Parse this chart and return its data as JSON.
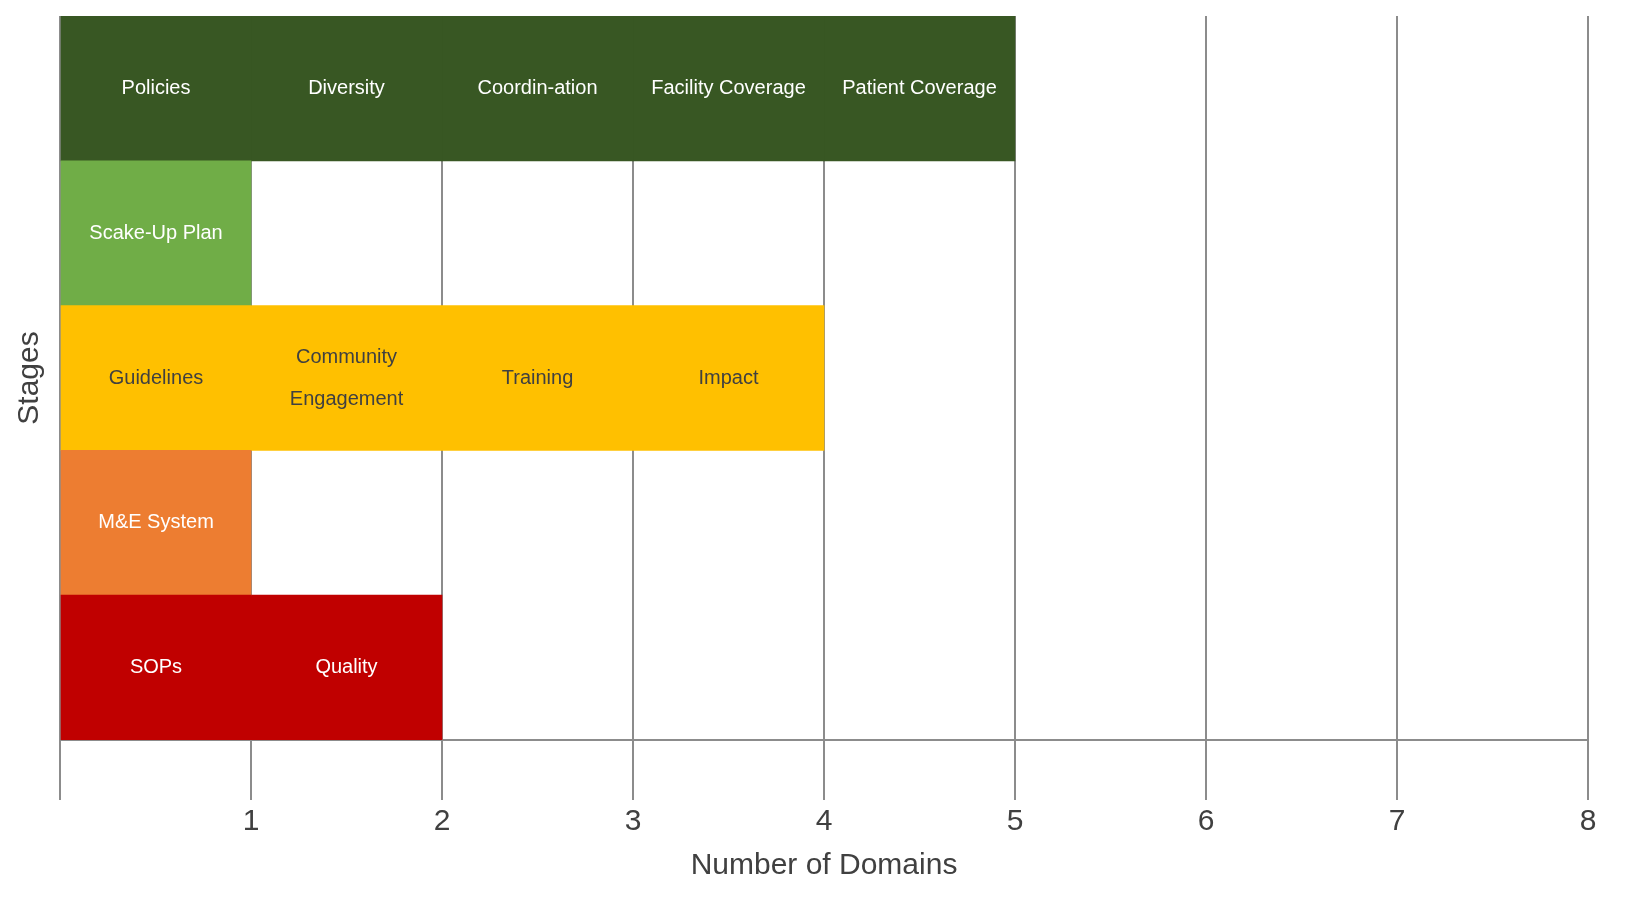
{
  "chart_data": {
    "type": "bar",
    "orientation": "horizontal",
    "stacked": true,
    "xlabel": "Number of Domains",
    "ylabel": "Stages",
    "categories": [
      null,
      null,
      null,
      null,
      null
    ],
    "series": [
      {
        "colors": [
          "#385723",
          "#70ad47",
          "#ffc000",
          "#ed7d31",
          "#c00000"
        ],
        "values": [
          1,
          1,
          1,
          1,
          1
        ],
        "value_labels": [
          "Policies",
          "Scake-Up Plan",
          "Guidelines",
          "M&E System",
          "SOPs"
        ]
      },
      {
        "colors": [
          "#385723",
          "#70ad47",
          "#ffc000",
          "#ed7d31",
          "#c00000"
        ],
        "values": [
          1,
          null,
          1,
          null,
          1
        ],
        "value_labels": [
          "Diversity",
          null,
          "Community Engagement",
          null,
          "Quality"
        ]
      },
      {
        "colors": [
          "#385723",
          "#70ad47",
          "#ffc000",
          "#ed7d31",
          "#c00000"
        ],
        "values": [
          1,
          null,
          1,
          null,
          null
        ],
        "value_labels": [
          "Coordin-ation",
          null,
          "Training",
          null,
          null
        ]
      },
      {
        "colors": [
          "#385723",
          "#70ad47",
          "#ffc000",
          "#ed7d31",
          "#c00000"
        ],
        "values": [
          1,
          null,
          1,
          null,
          null
        ],
        "value_labels": [
          "Facility Coverage",
          null,
          "Impact",
          null,
          null
        ]
      },
      {
        "colors": [
          "#385723",
          "#70ad47",
          "#ffc000",
          "#ed7d31",
          "#c00000"
        ],
        "values": [
          1,
          null,
          null,
          null,
          null
        ],
        "value_labels": [
          "Patient Coverage",
          null,
          null,
          null,
          null
        ]
      }
    ],
    "xlim": [
      0,
      8
    ],
    "xticks": [
      {
        "value": 0,
        "label": null
      },
      1,
      2,
      3,
      4,
      5,
      6,
      7,
      8
    ],
    "grid": "x",
    "legend": false,
    "tick_labels": "x"
  }
}
